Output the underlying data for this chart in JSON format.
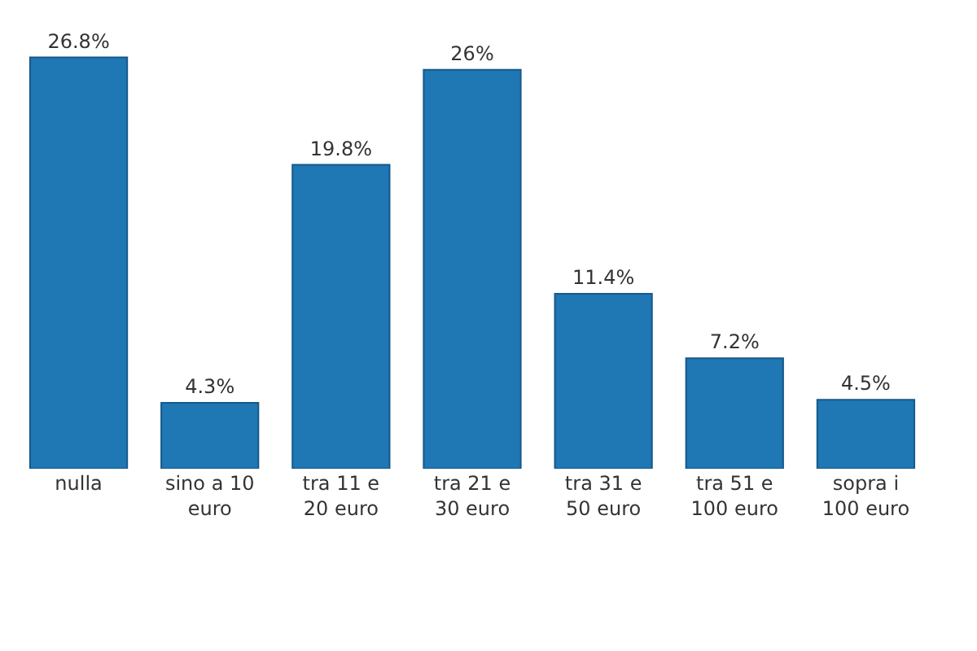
{
  "chart_data": {
    "type": "bar",
    "categories": [
      "nulla",
      "sino a 10 euro",
      "tra 11 e 20 euro",
      "tra 21 e 30 euro",
      "tra 31 e 50 euro",
      "tra 51 e 100 euro",
      "sopra i 100 euro"
    ],
    "values": [
      26.8,
      4.3,
      19.8,
      26,
      11.4,
      7.2,
      4.5
    ],
    "value_labels": [
      "26.8%",
      "4.3%",
      "19.8%",
      "26%",
      "11.4%",
      "7.2%",
      "4.5%"
    ],
    "color": "#1f77b4",
    "legend": false
  }
}
